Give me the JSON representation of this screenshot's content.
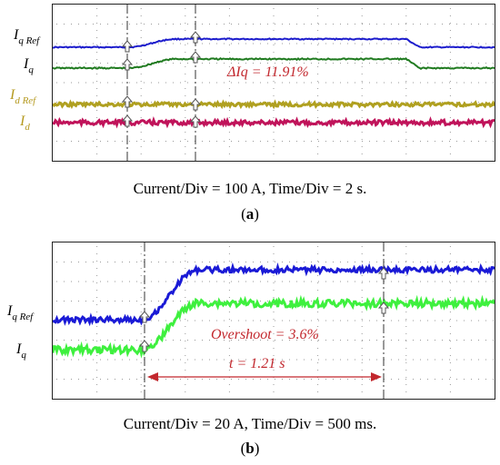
{
  "chart_data": [
    {
      "type": "line",
      "panel": "(a)",
      "annotation": "ΔIq = 11.91%",
      "caption": "Current/Div = 100 A, Time/Div = 2 s.",
      "series": [
        {
          "name": "Iq Ref",
          "label_main": "I",
          "label_sub": "q Ref",
          "color": "#1c1ccc",
          "before": 47,
          "after": 38,
          "step_start": 0.17,
          "step_end": 0.28,
          "drop_start": 0.8,
          "drop_end": 0.83,
          "noise": 0.6
        },
        {
          "name": "Iq",
          "label_main": "I",
          "label_sub": "q",
          "color": "#1f7a1f",
          "before": 70,
          "after": 60,
          "step_start": 0.17,
          "step_end": 0.28,
          "drop_start": 0.8,
          "drop_end": 0.83,
          "noise": 0.8
        },
        {
          "name": "Id Ref",
          "label_main": "I",
          "label_sub": "d Ref",
          "color": "#b0a020",
          "before": 110,
          "after": 110,
          "noise": 2.0
        },
        {
          "name": "Id",
          "label_main": "I",
          "label_sub": "d",
          "color": "#c0135a",
          "before": 130,
          "after": 130,
          "noise": 2.5
        }
      ]
    },
    {
      "type": "line",
      "panel": "(b)",
      "annotation_overshoot": "Overshoot = 3.6%",
      "annotation_time": "t = 1.21 s",
      "caption": "Current/Div = 20 A, Time/Div = 500 ms.",
      "series": [
        {
          "name": "Iq Ref",
          "label_main": "I",
          "label_sub": "q Ref",
          "color": "#1a1ad6",
          "before": 85,
          "after": 30,
          "step_start": 0.2,
          "step_end": 0.33,
          "noise": 3.0
        },
        {
          "name": "Iq",
          "label_main": "I",
          "label_sub": "q",
          "color": "#3ef03e",
          "before": 118,
          "after": 67,
          "step_start": 0.2,
          "step_end": 0.33,
          "noise": 4.0
        }
      ]
    }
  ],
  "panel_a_label": "(a)",
  "panel_b_label": "(b)"
}
